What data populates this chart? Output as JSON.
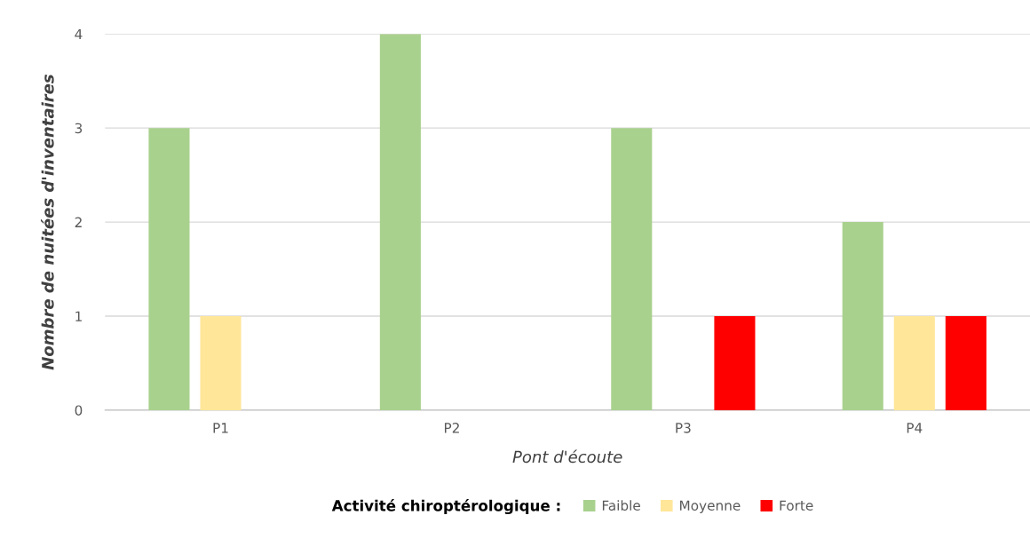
{
  "chart_data": {
    "type": "bar",
    "xlabel": "Pont d'écoute",
    "ylabel": "Nombre de nuitées d'inventaires",
    "legend_title": "Activité chiroptérologique :",
    "categories": [
      "P1",
      "P2",
      "P3",
      "P4"
    ],
    "series": [
      {
        "name": "Faible",
        "color": "#a9d18e",
        "values": [
          3,
          4,
          3,
          2
        ]
      },
      {
        "name": "Moyenne",
        "color": "#ffe699",
        "values": [
          1,
          0,
          0,
          1
        ]
      },
      {
        "name": "Forte",
        "color": "#ff0000",
        "values": [
          0,
          0,
          1,
          1
        ]
      }
    ],
    "ylim": [
      0,
      4
    ],
    "yticks": [
      0,
      1,
      2,
      3,
      4
    ],
    "grid": "y",
    "legend": "bottom"
  }
}
